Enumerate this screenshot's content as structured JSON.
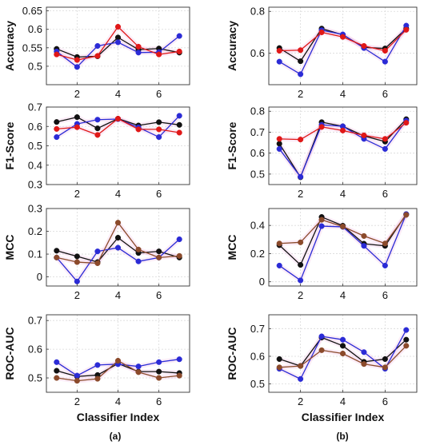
{
  "figure": {
    "panel_labels": [
      "(a)",
      "(b)"
    ],
    "xlabel": "Classifier Index"
  },
  "colors": {
    "black": "#111111",
    "blue": "#2b2bd6",
    "red": "#e01818",
    "brown": "#8b4a2b",
    "grid": "#d9d9d9"
  },
  "chart_data": [
    {
      "type": "line",
      "panel": "(a)",
      "ylabel": "Accuracy",
      "x": [
        1,
        2,
        3,
        4,
        5,
        6,
        7
      ],
      "xticks": [
        2,
        4,
        6
      ],
      "xlim": [
        0.5,
        7.5
      ],
      "ylim": [
        0.45,
        0.66
      ],
      "yticks": [
        0.5,
        0.55,
        0.6,
        0.65
      ],
      "yticklabels": [
        "0.5",
        "0.55",
        "0.6",
        "0.65"
      ],
      "grid": true,
      "series": [
        {
          "color": "black",
          "values": [
            0.547,
            0.525,
            0.527,
            0.578,
            0.545,
            0.548,
            0.537
          ]
        },
        {
          "color": "blue",
          "values": [
            0.54,
            0.498,
            0.555,
            0.565,
            0.537,
            0.538,
            0.582
          ]
        },
        {
          "color": "red",
          "values": [
            0.532,
            0.517,
            0.528,
            0.607,
            0.553,
            0.532,
            0.54
          ]
        }
      ]
    },
    {
      "type": "line",
      "panel": "(a)",
      "ylabel": "F1-Score",
      "x": [
        1,
        2,
        3,
        4,
        5,
        6,
        7
      ],
      "xticks": [
        2,
        4,
        6
      ],
      "xlim": [
        0.5,
        7.5
      ],
      "ylim": [
        0.3,
        0.7
      ],
      "yticks": [
        0.3,
        0.4,
        0.5,
        0.6,
        0.7
      ],
      "yticklabels": [
        "0.3",
        "0.4",
        "0.5",
        "0.6",
        "0.7"
      ],
      "grid": true,
      "series": [
        {
          "color": "black",
          "values": [
            0.623,
            0.648,
            0.59,
            0.64,
            0.605,
            0.622,
            0.608
          ]
        },
        {
          "color": "blue",
          "values": [
            0.545,
            0.613,
            0.635,
            0.638,
            0.595,
            0.545,
            0.655
          ]
        },
        {
          "color": "red",
          "values": [
            0.587,
            0.596,
            0.556,
            0.64,
            0.585,
            0.585,
            0.568
          ]
        }
      ]
    },
    {
      "type": "line",
      "panel": "(a)",
      "ylabel": "MCC",
      "x": [
        1,
        2,
        3,
        4,
        5,
        6,
        7
      ],
      "xticks": [
        2,
        4,
        6
      ],
      "xlim": [
        0.5,
        7.5
      ],
      "ylim": [
        -0.04,
        0.3
      ],
      "yticks": [
        0,
        0.1,
        0.2,
        0.3
      ],
      "yticklabels": [
        "0",
        "0.1",
        "0.2",
        "0.3"
      ],
      "grid": true,
      "series": [
        {
          "color": "black",
          "values": [
            0.115,
            0.09,
            0.065,
            0.172,
            0.105,
            0.112,
            0.085
          ]
        },
        {
          "color": "blue",
          "values": [
            0.085,
            -0.02,
            0.112,
            0.128,
            0.068,
            0.085,
            0.165
          ]
        },
        {
          "color": "brown",
          "values": [
            0.085,
            0.065,
            0.06,
            0.238,
            0.12,
            0.085,
            0.092
          ]
        }
      ]
    },
    {
      "type": "line",
      "panel": "(a)",
      "ylabel": "ROC-AUC",
      "x": [
        1,
        2,
        3,
        4,
        5,
        6,
        7
      ],
      "xticks": [
        2,
        4,
        6
      ],
      "xlim": [
        0.5,
        7.5
      ],
      "ylim": [
        0.45,
        0.72
      ],
      "yticks": [
        0.5,
        0.6,
        0.7
      ],
      "yticklabels": [
        "0.5",
        "0.6",
        "0.7"
      ],
      "grid": true,
      "series": [
        {
          "color": "black",
          "values": [
            0.525,
            0.505,
            0.51,
            0.55,
            0.522,
            0.522,
            0.517
          ]
        },
        {
          "color": "blue",
          "values": [
            0.555,
            0.508,
            0.545,
            0.548,
            0.54,
            0.555,
            0.565
          ]
        },
        {
          "color": "brown",
          "values": [
            0.5,
            0.49,
            0.497,
            0.56,
            0.52,
            0.5,
            0.508
          ]
        }
      ]
    },
    {
      "type": "line",
      "panel": "(b)",
      "ylabel": "Accuracy",
      "x": [
        1,
        2,
        3,
        4,
        5,
        6,
        7
      ],
      "xticks": [
        2,
        4,
        6
      ],
      "xlim": [
        0.5,
        7.5
      ],
      "ylim": [
        0.45,
        0.82
      ],
      "yticks": [
        0.6,
        0.8
      ],
      "yticklabels": [
        "0.6",
        "0.8"
      ],
      "grid": true,
      "series": [
        {
          "color": "black",
          "values": [
            0.625,
            0.562,
            0.718,
            0.688,
            0.628,
            0.623,
            0.718
          ]
        },
        {
          "color": "blue",
          "values": [
            0.56,
            0.5,
            0.71,
            0.69,
            0.625,
            0.56,
            0.732
          ]
        },
        {
          "color": "red",
          "values": [
            0.612,
            0.615,
            0.7,
            0.678,
            0.635,
            0.612,
            0.712
          ]
        }
      ]
    },
    {
      "type": "line",
      "panel": "(b)",
      "ylabel": "F1-Score",
      "x": [
        1,
        2,
        3,
        4,
        5,
        6,
        7
      ],
      "xticks": [
        2,
        4,
        6
      ],
      "xlim": [
        0.5,
        7.5
      ],
      "ylim": [
        0.45,
        0.82
      ],
      "yticks": [
        0.5,
        0.6,
        0.7,
        0.8
      ],
      "yticklabels": [
        "0.5",
        "0.6",
        "0.7",
        "0.8"
      ],
      "grid": true,
      "series": [
        {
          "color": "black",
          "values": [
            0.645,
            0.485,
            0.748,
            0.728,
            0.682,
            0.655,
            0.762
          ]
        },
        {
          "color": "blue",
          "values": [
            0.62,
            0.487,
            0.735,
            0.728,
            0.668,
            0.62,
            0.755
          ]
        },
        {
          "color": "red",
          "values": [
            0.668,
            0.665,
            0.725,
            0.708,
            0.685,
            0.668,
            0.745
          ]
        }
      ]
    },
    {
      "type": "line",
      "panel": "(b)",
      "ylabel": "MCC",
      "x": [
        1,
        2,
        3,
        4,
        5,
        6,
        7
      ],
      "xticks": [
        2,
        4,
        6
      ],
      "xlim": [
        0.5,
        7.5
      ],
      "ylim": [
        -0.03,
        0.52
      ],
      "yticks": [
        0,
        0.2,
        0.4
      ],
      "yticklabels": [
        "0",
        "0.2",
        "0.4"
      ],
      "grid": true,
      "series": [
        {
          "color": "black",
          "values": [
            0.26,
            0.12,
            0.46,
            0.398,
            0.27,
            0.255,
            0.48
          ]
        },
        {
          "color": "blue",
          "values": [
            0.115,
            0.01,
            0.395,
            0.39,
            0.255,
            0.115,
            0.48
          ]
        },
        {
          "color": "brown",
          "values": [
            0.272,
            0.28,
            0.44,
            0.392,
            0.325,
            0.272,
            0.475
          ]
        }
      ]
    },
    {
      "type": "line",
      "panel": "(b)",
      "ylabel": "ROC-AUC",
      "x": [
        1,
        2,
        3,
        4,
        5,
        6,
        7
      ],
      "xticks": [
        2,
        4,
        6
      ],
      "xlim": [
        0.5,
        7.5
      ],
      "ylim": [
        0.47,
        0.75
      ],
      "yticks": [
        0.5,
        0.6,
        0.7
      ],
      "yticklabels": [
        "0.5",
        "0.6",
        "0.7"
      ],
      "grid": true,
      "series": [
        {
          "color": "black",
          "values": [
            0.59,
            0.565,
            0.668,
            0.638,
            0.58,
            0.59,
            0.66
          ]
        },
        {
          "color": "blue",
          "values": [
            0.555,
            0.518,
            0.672,
            0.66,
            0.615,
            0.555,
            0.695
          ]
        },
        {
          "color": "brown",
          "values": [
            0.56,
            0.565,
            0.622,
            0.61,
            0.572,
            0.56,
            0.638
          ]
        }
      ]
    }
  ]
}
